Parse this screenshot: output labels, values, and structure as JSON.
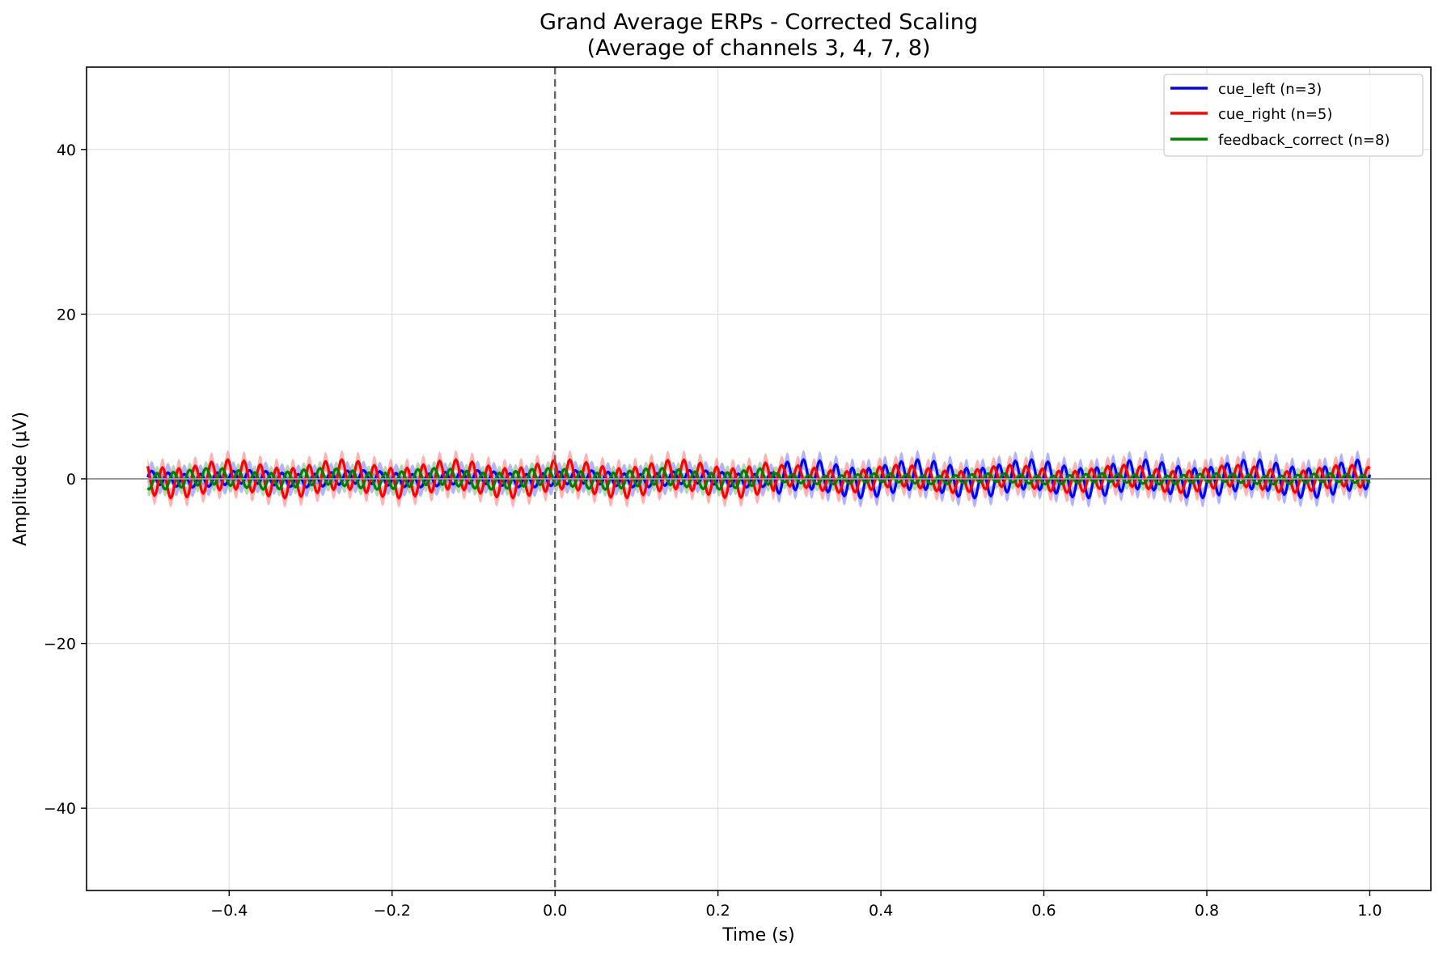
{
  "chart_data": {
    "type": "line",
    "title": "Grand Average ERPs - Corrected Scaling",
    "subtitle": "(Average of channels 3, 4, 7, 8)",
    "xlabel": "Time (s)",
    "ylabel": "Amplitude (μV)",
    "xlim": [
      -0.575,
      1.075
    ],
    "ylim": [
      -50,
      50
    ],
    "x_range": [
      -0.5,
      1.0
    ],
    "xticks": [
      -0.4,
      -0.2,
      0.0,
      0.2,
      0.4,
      0.6,
      0.8,
      1.0
    ],
    "xtick_labels": [
      "−0.4",
      "−0.2",
      "0.0",
      "0.2",
      "0.4",
      "0.6",
      "0.8",
      "1.0"
    ],
    "yticks": [
      -40,
      -20,
      0,
      20,
      40
    ],
    "ytick_labels": [
      "−40",
      "−20",
      "0",
      "20",
      "40"
    ],
    "grid": true,
    "legend_position": "top-right",
    "reference_lines": [
      {
        "type": "vertical",
        "x": 0.0,
        "style": "dashed",
        "color": "#666666"
      },
      {
        "type": "horizontal",
        "y": 0.0,
        "style": "solid",
        "color": "#999999"
      }
    ],
    "series": [
      {
        "name": "cue_left (n=3)",
        "color": "#0000ff",
        "cycles_per_s": 50,
        "amplitude_pre": 0.8,
        "amplitude_post": 1.8,
        "amplitude_change_at": 0.27,
        "error_band": 1.2
      },
      {
        "name": "cue_right (n=5)",
        "color": "#ff0000",
        "cycles_per_s": 50,
        "amplitude_pre": 1.8,
        "amplitude_post": 1.3,
        "amplitude_change_at": 0.27,
        "error_band": 1.2
      },
      {
        "name": "feedback_correct (n=8)",
        "color": "#008000",
        "cycles_per_s": 50,
        "amplitude_pre": 1.0,
        "amplitude_post": 0.5,
        "amplitude_change_at": 0.27,
        "error_band": 0.9
      }
    ]
  }
}
